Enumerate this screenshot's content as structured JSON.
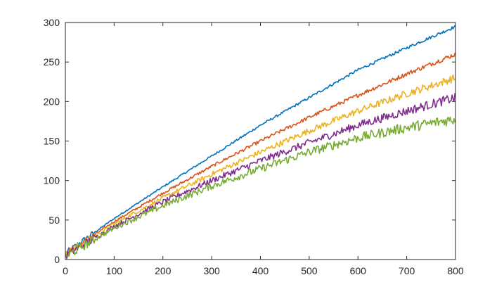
{
  "chart_data": {
    "type": "line",
    "title": "",
    "xlabel": "",
    "ylabel": "",
    "xlim": [
      0,
      800
    ],
    "ylim": [
      0,
      300
    ],
    "xticks": [
      0,
      100,
      200,
      300,
      400,
      500,
      600,
      700,
      800
    ],
    "yticks": [
      0,
      50,
      100,
      150,
      200,
      250,
      300
    ],
    "xtick_labels": [
      "0",
      "100",
      "200",
      "300",
      "400",
      "500",
      "600",
      "700",
      "800"
    ],
    "ytick_labels": [
      "0",
      "50",
      "100",
      "150",
      "200",
      "250",
      "300"
    ],
    "grid": false,
    "legend": "none",
    "x": [
      0,
      100,
      200,
      300,
      400,
      500,
      600,
      700,
      800
    ],
    "series": [
      {
        "color": "#0072BD",
        "values": [
          8,
          52,
          92,
          131,
          170,
          205,
          240,
          268,
          295
        ],
        "noise": 2
      },
      {
        "color": "#D95319",
        "values": [
          7,
          48,
          84,
          118,
          150,
          180,
          208,
          235,
          260
        ],
        "noise": 3
      },
      {
        "color": "#EDB120",
        "values": [
          6,
          45,
          78,
          108,
          136,
          163,
          188,
          210,
          230
        ],
        "noise": 5
      },
      {
        "color": "#7E2F8E",
        "values": [
          5,
          42,
          73,
          100,
          125,
          148,
          170,
          188,
          205
        ],
        "noise": 6
      },
      {
        "color": "#77AC30",
        "values": [
          4,
          40,
          68,
          93,
          115,
          136,
          154,
          167,
          178
        ],
        "noise": 7
      }
    ]
  }
}
